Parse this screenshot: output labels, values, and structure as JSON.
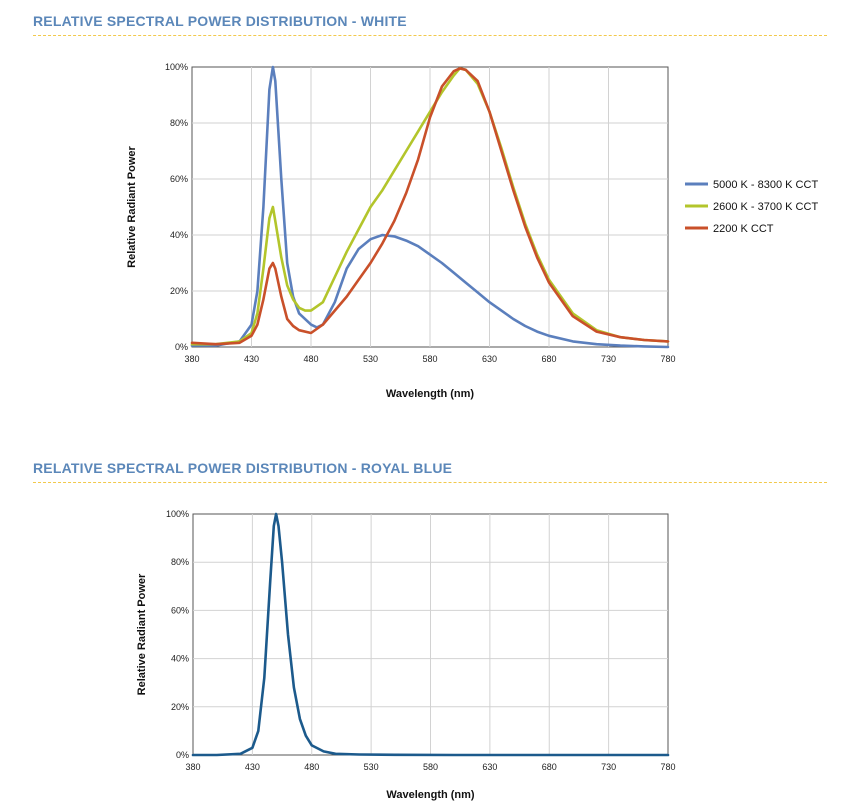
{
  "sections": [
    {
      "title": "RELATIVE SPECTRAL POWER DISTRIBUTION - WHITE"
    },
    {
      "title": "RELATIVE SPECTRAL POWER DISTRIBUTION - ROYAL BLUE"
    }
  ],
  "chart_data": [
    {
      "type": "line",
      "title": "RELATIVE SPECTRAL POWER DISTRIBUTION - WHITE",
      "xlabel": "Wavelength (nm)",
      "ylabel": "Relative Radiant Power",
      "xlim": [
        380,
        780
      ],
      "ylim": [
        0,
        100
      ],
      "x_ticks": [
        380,
        430,
        480,
        530,
        580,
        630,
        680,
        730,
        780
      ],
      "y_ticks": [
        "0%",
        "20%",
        "40%",
        "60%",
        "80%",
        "100%"
      ],
      "grid": true,
      "legend": "right",
      "series": [
        {
          "name": "5000 K - 8300 K CCT",
          "color": "#5b7fbd",
          "x": [
            380,
            400,
            420,
            430,
            435,
            440,
            445,
            448,
            450,
            455,
            460,
            465,
            470,
            480,
            485,
            490,
            500,
            510,
            520,
            530,
            540,
            550,
            560,
            570,
            580,
            590,
            600,
            610,
            620,
            630,
            640,
            650,
            660,
            670,
            680,
            700,
            720,
            740,
            760,
            780
          ],
          "y": [
            0.5,
            0.5,
            2,
            8,
            20,
            50,
            92,
            100,
            95,
            60,
            30,
            18,
            12,
            8,
            7,
            8,
            16,
            28,
            35,
            38.5,
            40,
            39.5,
            38,
            36,
            33,
            30,
            26.5,
            23,
            19.5,
            16,
            13,
            10,
            7.5,
            5.5,
            4,
            2,
            1,
            0.5,
            0.2,
            0
          ]
        },
        {
          "name": "2600 K - 3700 K CCT",
          "color": "#b3c52b",
          "x": [
            380,
            400,
            420,
            430,
            435,
            440,
            445,
            448,
            450,
            455,
            460,
            465,
            470,
            475,
            480,
            490,
            500,
            510,
            520,
            530,
            540,
            550,
            560,
            570,
            580,
            590,
            600,
            605,
            610,
            620,
            630,
            640,
            650,
            660,
            670,
            680,
            700,
            720,
            740,
            760,
            780
          ],
          "y": [
            1,
            1,
            2,
            5,
            12,
            28,
            46,
            50,
            45,
            32,
            22,
            17,
            14,
            13,
            13,
            16,
            25,
            34,
            42,
            50,
            56,
            63,
            70,
            77,
            84,
            91,
            97,
            99.5,
            99,
            94,
            84,
            71,
            57,
            44,
            33,
            24,
            12,
            6,
            3.5,
            2.5,
            2
          ]
        },
        {
          "name": "2200 K CCT",
          "color": "#c9502a",
          "x": [
            380,
            400,
            420,
            430,
            435,
            440,
            445,
            448,
            450,
            455,
            460,
            465,
            470,
            480,
            490,
            500,
            510,
            520,
            530,
            540,
            550,
            560,
            570,
            580,
            590,
            600,
            605,
            610,
            620,
            630,
            640,
            650,
            660,
            670,
            680,
            700,
            720,
            740,
            760,
            780
          ],
          "y": [
            1.5,
            1,
            1.5,
            4,
            8,
            17,
            28,
            30,
            28,
            18,
            10,
            7.5,
            6,
            5,
            8,
            13,
            18,
            24,
            30,
            37,
            45,
            55,
            67,
            82,
            93,
            98.5,
            99.5,
            99,
            95,
            84,
            70,
            56,
            43,
            32,
            23,
            11,
            5.5,
            3.5,
            2.5,
            2
          ]
        }
      ]
    },
    {
      "type": "line",
      "title": "RELATIVE SPECTRAL POWER DISTRIBUTION - ROYAL BLUE",
      "xlabel": "Wavelength (nm)",
      "ylabel": "Relative Radiant Power",
      "xlim": [
        380,
        780
      ],
      "ylim": [
        0,
        100
      ],
      "x_ticks": [
        380,
        430,
        480,
        530,
        580,
        630,
        680,
        730,
        780
      ],
      "y_ticks": [
        "0%",
        "20%",
        "40%",
        "60%",
        "80%",
        "100%"
      ],
      "grid": true,
      "legend": "none",
      "series": [
        {
          "color": "#1c5a8c",
          "x": [
            380,
            400,
            420,
            430,
            435,
            440,
            445,
            448,
            450,
            452,
            455,
            460,
            465,
            470,
            475,
            480,
            490,
            500,
            520,
            550,
            600,
            700,
            780
          ],
          "y": [
            0,
            0,
            0.5,
            3,
            10,
            32,
            72,
            95,
            100,
            95,
            80,
            50,
            28,
            15,
            8,
            4,
            1.5,
            0.5,
            0.2,
            0.1,
            0,
            0,
            0
          ]
        }
      ]
    }
  ]
}
